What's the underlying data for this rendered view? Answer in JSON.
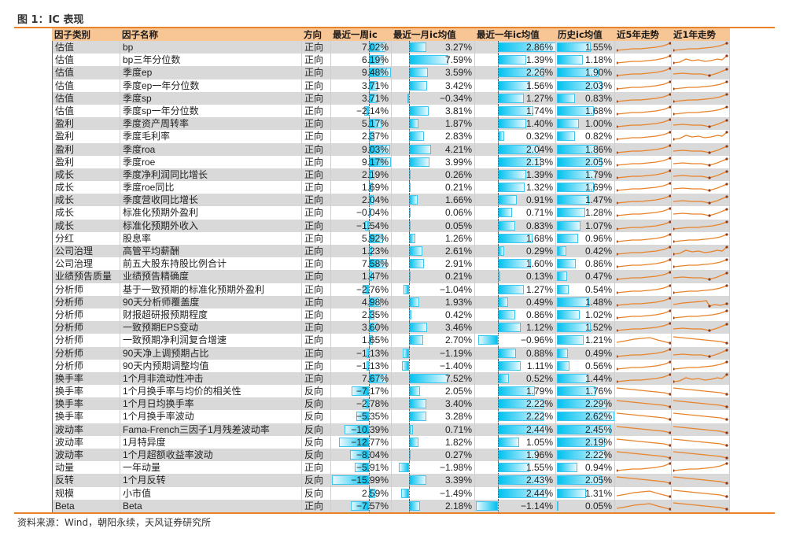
{
  "figure": {
    "title": "图 1：IC 表现",
    "source": "资料来源：Wind，朝阳永续，天风证券研究所"
  },
  "colors": {
    "accent_rule": "#e8832a",
    "header_bg": "#f8c594",
    "row_alt_bg": "#d9d9d9",
    "bar_fill": "#00c2f0",
    "sparkline": "#e8832a",
    "sparkline_marker": "#8b3a1a"
  },
  "table": {
    "headers": [
      "因子类别",
      "因子名称",
      "方向",
      "最近一周ic",
      "最近一月ic均值",
      "最近一年ic均值",
      "历史ic均值",
      "近5年走势",
      "近1年走势"
    ],
    "rows": [
      {
        "category": "估值",
        "name": "bp",
        "direction": "正向",
        "week": "7.02%",
        "month": "3.27%",
        "year": "2.86%",
        "hist": "1.55%",
        "w": 7.02,
        "m": 3.27,
        "y": 2.86,
        "h": 1.55,
        "t5": "up",
        "t1": "up"
      },
      {
        "category": "估值",
        "name": "bp三年分位数",
        "direction": "正向",
        "week": "6.19%",
        "month": "7.59%",
        "year": "1.39%",
        "hist": "1.18%",
        "w": 6.19,
        "m": 7.59,
        "y": 1.39,
        "h": 1.18,
        "t5": "up",
        "t1": "wavy"
      },
      {
        "category": "估值",
        "name": "季度ep",
        "direction": "正向",
        "week": "9.48%",
        "month": "3.59%",
        "year": "2.26%",
        "hist": "1.90%",
        "w": 9.48,
        "m": 3.59,
        "y": 2.26,
        "h": 1.9,
        "t5": "up",
        "t1": "dip"
      },
      {
        "category": "估值",
        "name": "季度ep一年分位数",
        "direction": "正向",
        "week": "3.71%",
        "month": "3.42%",
        "year": "1.56%",
        "hist": "2.03%",
        "w": 3.71,
        "m": 3.42,
        "y": 1.56,
        "h": 2.03,
        "t5": "up",
        "t1": "up"
      },
      {
        "category": "估值",
        "name": "季度sp",
        "direction": "正向",
        "week": "3.71%",
        "month": "−0.34%",
        "year": "1.27%",
        "hist": "0.83%",
        "w": 3.71,
        "m": -0.34,
        "y": 1.27,
        "h": 0.83,
        "t5": "up",
        "t1": "up"
      },
      {
        "category": "估值",
        "name": "季度sp一年分位数",
        "direction": "正向",
        "week": "−2.14%",
        "month": "3.81%",
        "year": "1.74%",
        "hist": "1.68%",
        "w": -2.14,
        "m": 3.81,
        "y": 1.74,
        "h": 1.68,
        "t5": "up",
        "t1": "up"
      },
      {
        "category": "盈利",
        "name": "季度资产周转率",
        "direction": "正向",
        "week": "5.17%",
        "month": "1.87%",
        "year": "1.40%",
        "hist": "1.00%",
        "w": 5.17,
        "m": 1.87,
        "y": 1.4,
        "h": 1.0,
        "t5": "up",
        "t1": "dip"
      },
      {
        "category": "盈利",
        "name": "季度毛利率",
        "direction": "正向",
        "week": "2.37%",
        "month": "2.83%",
        "year": "0.32%",
        "hist": "0.82%",
        "w": 2.37,
        "m": 2.83,
        "y": 0.32,
        "h": 0.82,
        "t5": "up",
        "t1": "wavy"
      },
      {
        "category": "盈利",
        "name": "季度roa",
        "direction": "正向",
        "week": "9.03%",
        "month": "4.21%",
        "year": "2.04%",
        "hist": "1.86%",
        "w": 9.03,
        "m": 4.21,
        "y": 2.04,
        "h": 1.86,
        "t5": "up",
        "t1": "dip"
      },
      {
        "category": "盈利",
        "name": "季度roe",
        "direction": "正向",
        "week": "9.17%",
        "month": "3.99%",
        "year": "2.13%",
        "hist": "2.05%",
        "w": 9.17,
        "m": 3.99,
        "y": 2.13,
        "h": 2.05,
        "t5": "up",
        "t1": "dip"
      },
      {
        "category": "成长",
        "name": "季度净利润同比增长",
        "direction": "正向",
        "week": "2.19%",
        "month": "0.26%",
        "year": "1.39%",
        "hist": "1.79%",
        "w": 2.19,
        "m": 0.26,
        "y": 1.39,
        "h": 1.79,
        "t5": "up",
        "t1": "dip"
      },
      {
        "category": "成长",
        "name": "季度roe同比",
        "direction": "正向",
        "week": "1.69%",
        "month": "0.21%",
        "year": "1.32%",
        "hist": "1.69%",
        "w": 1.69,
        "m": 0.21,
        "y": 1.32,
        "h": 1.69,
        "t5": "up",
        "t1": "dip"
      },
      {
        "category": "成长",
        "name": "季度营收同比增长",
        "direction": "正向",
        "week": "2.04%",
        "month": "1.66%",
        "year": "0.91%",
        "hist": "1.47%",
        "w": 2.04,
        "m": 1.66,
        "y": 0.91,
        "h": 1.47,
        "t5": "up",
        "t1": "dip"
      },
      {
        "category": "成长",
        "name": "标准化预期外盈利",
        "direction": "正向",
        "week": "−0.04%",
        "month": "0.06%",
        "year": "0.71%",
        "hist": "1.28%",
        "w": -0.04,
        "m": 0.06,
        "y": 0.71,
        "h": 1.28,
        "t5": "up",
        "t1": "dip"
      },
      {
        "category": "成长",
        "name": "标准化预期外收入",
        "direction": "正向",
        "week": "−1.54%",
        "month": "0.05%",
        "year": "0.83%",
        "hist": "1.07%",
        "w": -1.54,
        "m": 0.05,
        "y": 0.83,
        "h": 1.07,
        "t5": "up",
        "t1": "up"
      },
      {
        "category": "分红",
        "name": "股息率",
        "direction": "正向",
        "week": "5.92%",
        "month": "1.26%",
        "year": "1.68%",
        "hist": "0.96%",
        "w": 5.92,
        "m": 1.26,
        "y": 1.68,
        "h": 0.96,
        "t5": "up",
        "t1": "up"
      },
      {
        "category": "公司治理",
        "name": "高管平均薪酬",
        "direction": "正向",
        "week": "1.23%",
        "month": "2.61%",
        "year": "0.29%",
        "hist": "0.42%",
        "w": 1.23,
        "m": 2.61,
        "y": 0.29,
        "h": 0.42,
        "t5": "up",
        "t1": "wavy"
      },
      {
        "category": "公司治理",
        "name": "前五大股东持股比例合计",
        "direction": "正向",
        "week": "7.58%",
        "month": "2.91%",
        "year": "1.60%",
        "hist": "0.86%",
        "w": 7.58,
        "m": 2.91,
        "y": 1.6,
        "h": 0.86,
        "t5": "up",
        "t1": "up"
      },
      {
        "category": "业绩预告质量",
        "name": "业绩预告精确度",
        "direction": "正向",
        "week": "1.47%",
        "month": "0.21%",
        "year": "0.13%",
        "hist": "0.47%",
        "w": 1.47,
        "m": 0.21,
        "y": 0.13,
        "h": 0.47,
        "t5": "up",
        "t1": "dip"
      },
      {
        "category": "分析师",
        "name": "基于一致预期的标准化预期外盈利",
        "direction": "正向",
        "week": "−2.76%",
        "month": "−1.04%",
        "year": "1.27%",
        "hist": "0.54%",
        "w": -2.76,
        "m": -1.04,
        "y": 1.27,
        "h": 0.54,
        "t5": "up",
        "t1": "up"
      },
      {
        "category": "分析师",
        "name": "90天分析师覆盖度",
        "direction": "正向",
        "week": "4.98%",
        "month": "1.93%",
        "year": "0.49%",
        "hist": "1.48%",
        "w": 4.98,
        "m": 1.93,
        "y": 0.49,
        "h": 1.48,
        "t5": "up",
        "t1": "drop"
      },
      {
        "category": "分析师",
        "name": "财报超研报预期程度",
        "direction": "正向",
        "week": "2.35%",
        "month": "0.42%",
        "year": "0.86%",
        "hist": "1.02%",
        "w": 2.35,
        "m": 0.42,
        "y": 0.86,
        "h": 1.02,
        "t5": "up",
        "t1": "up"
      },
      {
        "category": "分析师",
        "name": "一致预期EPS变动",
        "direction": "正向",
        "week": "3.60%",
        "month": "3.46%",
        "year": "1.12%",
        "hist": "1.52%",
        "w": 3.6,
        "m": 3.46,
        "y": 1.12,
        "h": 1.52,
        "t5": "up",
        "t1": "dip"
      },
      {
        "category": "分析师",
        "name": "一致预期净利润复合增速",
        "direction": "正向",
        "week": "1.65%",
        "month": "2.70%",
        "year": "−0.96%",
        "hist": "1.21%",
        "w": 1.65,
        "m": 2.7,
        "y": -0.96,
        "h": 1.21,
        "t5": "hump",
        "t1": "down"
      },
      {
        "category": "分析师",
        "name": "90天净上调预期占比",
        "direction": "正向",
        "week": "−1.13%",
        "month": "−1.19%",
        "year": "0.88%",
        "hist": "0.49%",
        "w": -1.13,
        "m": -1.19,
        "y": 0.88,
        "h": 0.49,
        "t5": "up",
        "t1": "dip"
      },
      {
        "category": "分析师",
        "name": "90天内预期调整均值",
        "direction": "正向",
        "week": "−1.13%",
        "month": "−1.40%",
        "year": "1.11%",
        "hist": "0.56%",
        "w": -1.13,
        "m": -1.4,
        "y": 1.11,
        "h": 0.56,
        "t5": "up",
        "t1": "up"
      },
      {
        "category": "换手率",
        "name": "1个月非流动性冲击",
        "direction": "正向",
        "week": "7.67%",
        "month": "7.52%",
        "year": "0.52%",
        "hist": "1.44%",
        "w": 7.67,
        "m": 7.52,
        "y": 0.52,
        "h": 1.44,
        "t5": "up",
        "t1": "wavy"
      },
      {
        "category": "换手率",
        "name": "1个月换手率与均价的相关性",
        "direction": "反向",
        "week": "−7.17%",
        "month": "2.05%",
        "year": "1.79%",
        "hist": "1.76%",
        "w": -7.17,
        "m": 2.05,
        "y": 1.79,
        "h": 1.76,
        "t5": "down",
        "t1": "down"
      },
      {
        "category": "换手率",
        "name": "1个月日均换手率",
        "direction": "反向",
        "week": "−2.78%",
        "month": "3.40%",
        "year": "2.22%",
        "hist": "2.29%",
        "w": -2.78,
        "m": 3.4,
        "y": 2.22,
        "h": 2.29,
        "t5": "down",
        "t1": "down"
      },
      {
        "category": "换手率",
        "name": "1个月换手率波动",
        "direction": "反向",
        "week": "−5.35%",
        "month": "3.28%",
        "year": "2.22%",
        "hist": "2.62%",
        "w": -5.35,
        "m": 3.28,
        "y": 2.22,
        "h": 2.62,
        "t5": "down",
        "t1": "down"
      },
      {
        "category": "波动率",
        "name": "Fama-French三因子1月残差波动率",
        "direction": "反向",
        "week": "−10.39%",
        "month": "0.71%",
        "year": "2.44%",
        "hist": "2.45%",
        "w": -10.39,
        "m": 0.71,
        "y": 2.44,
        "h": 2.45,
        "t5": "down",
        "t1": "down"
      },
      {
        "category": "波动率",
        "name": "1月特异度",
        "direction": "反向",
        "week": "−12.77%",
        "month": "1.82%",
        "year": "1.05%",
        "hist": "2.19%",
        "w": -12.77,
        "m": 1.82,
        "y": 1.05,
        "h": 2.19,
        "t5": "down",
        "t1": "down"
      },
      {
        "category": "波动率",
        "name": "1个月超额收益率波动",
        "direction": "反向",
        "week": "−8.04%",
        "month": "0.27%",
        "year": "1.96%",
        "hist": "2.22%",
        "w": -8.04,
        "m": 0.27,
        "y": 1.96,
        "h": 2.22,
        "t5": "down",
        "t1": "down"
      },
      {
        "category": "动量",
        "name": "一年动量",
        "direction": "正向",
        "week": "−5.91%",
        "month": "−1.98%",
        "year": "1.55%",
        "hist": "0.94%",
        "w": -5.91,
        "m": -1.98,
        "y": 1.55,
        "h": 0.94,
        "t5": "up",
        "t1": "up"
      },
      {
        "category": "反转",
        "name": "1个月反转",
        "direction": "反向",
        "week": "−15.99%",
        "month": "3.39%",
        "year": "2.43%",
        "hist": "2.05%",
        "w": -15.99,
        "m": 3.39,
        "y": 2.43,
        "h": 2.05,
        "t5": "down",
        "t1": "down"
      },
      {
        "category": "规模",
        "name": "小市值",
        "direction": "反向",
        "week": "2.59%",
        "month": "−1.49%",
        "year": "2.44%",
        "hist": "1.31%",
        "w": 2.59,
        "m": -1.49,
        "y": 2.44,
        "h": 1.31,
        "t5": "hump",
        "t1": "down"
      },
      {
        "category": "Beta",
        "name": "Beta",
        "direction": "正向",
        "week": "−7.57%",
        "month": "2.18%",
        "year": "−1.14%",
        "hist": "0.05%",
        "w": -7.57,
        "m": 2.18,
        "y": -1.14,
        "h": 0.05,
        "t5": "hump",
        "t1": "down"
      }
    ]
  }
}
